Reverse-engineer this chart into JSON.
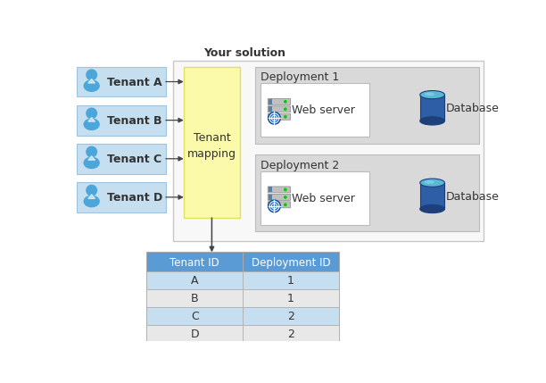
{
  "title": "Your solution",
  "tenant_labels": [
    "Tenant A",
    "Tenant B",
    "Tenant C",
    "Tenant D"
  ],
  "tenant_box_color": "#C5DFF0",
  "tenant_box_edge": "#A0C4DE",
  "mapping_box_color": "#FAFAAA",
  "mapping_box_edge": "#E0E060",
  "mapping_label": "Tenant\nmapping",
  "solution_box_fc": "#F8F8F8",
  "solution_box_ec": "#C8C8C8",
  "deployment_labels": [
    "Deployment 1",
    "Deployment 2"
  ],
  "deploy_box_color": "#D9D9D9",
  "deploy_box_edge": "#BBBBBB",
  "webserver_box_color": "#FFFFFF",
  "webserver_box_edge": "#BBBBBB",
  "table_header_color": "#5B9BD5",
  "table_row_colors_odd": "#C5DFF0",
  "table_row_colors_even": "#E8E8E8",
  "table_tenant_ids": [
    "A",
    "B",
    "C",
    "D"
  ],
  "table_deployment_ids": [
    "1",
    "1",
    "2",
    "2"
  ],
  "table_col_headers": [
    "Tenant ID",
    "Deployment ID"
  ],
  "arrow_color": "#444444",
  "text_color": "#333333",
  "figure_bg": "#FFFFFF",
  "tenant_icon_color": "#4DA6D9",
  "webserver_icon_color_body": "#A0A0A0",
  "webserver_icon_color_strip": "#5B7FA6",
  "db_color_body": "#2E5FA6",
  "db_color_top": "#5BB8D4"
}
